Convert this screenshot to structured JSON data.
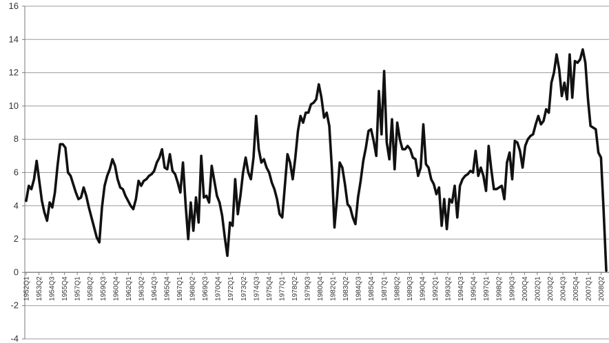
{
  "chart_data": {
    "type": "line",
    "title": "",
    "xlabel": "",
    "ylabel": "",
    "ylim": [
      -4,
      16
    ],
    "yticks": [
      -4,
      -2,
      0,
      2,
      4,
      6,
      8,
      10,
      12,
      14,
      16
    ],
    "grid": "horizontal",
    "legend": "none",
    "colors": {
      "line": "#111111",
      "grid": "#9a9a9a",
      "axis": "#7a7a7a"
    },
    "xtick_labels": [
      "1952Q1",
      "1953Q2",
      "1954Q3",
      "1955Q4",
      "1957Q1",
      "1958Q2",
      "1959Q3",
      "1960Q4",
      "1962Q1",
      "1963Q2",
      "1964Q3",
      "1965Q4",
      "1967Q1",
      "1968Q2",
      "1969Q3",
      "1970Q4",
      "1972Q1",
      "1973Q2",
      "1974Q3",
      "1975Q4",
      "1977Q1",
      "1978Q2",
      "1979Q3",
      "1980Q4",
      "1982Q1",
      "1983Q2",
      "1984Q3",
      "1985Q4",
      "1987Q1",
      "1988Q2",
      "1989Q3",
      "1990Q4",
      "1992Q1",
      "1993Q2",
      "1994Q3",
      "1995Q4",
      "1997Q1",
      "1998Q2",
      "1999Q3",
      "2000Q4",
      "2002Q1",
      "2003Q2",
      "2004Q3",
      "2005Q4",
      "2007Q1",
      "2008Q2"
    ],
    "x_start": "1952Q1",
    "x_end": "2008Q4",
    "series": [
      {
        "values": [
          4.3,
          5.2,
          5.0,
          5.6,
          6.7,
          5.5,
          4.3,
          3.6,
          3.1,
          4.2,
          3.9,
          4.8,
          6.4,
          7.7,
          7.7,
          7.5,
          6.0,
          5.8,
          5.3,
          4.8,
          4.4,
          4.5,
          5.1,
          4.6,
          3.9,
          3.3,
          2.7,
          2.1,
          1.8,
          3.9,
          5.2,
          5.8,
          6.2,
          6.8,
          6.4,
          5.6,
          5.1,
          5.0,
          4.6,
          4.3,
          4.0,
          3.8,
          4.4,
          5.5,
          5.2,
          5.5,
          5.6,
          5.8,
          5.9,
          6.1,
          6.6,
          6.9,
          7.4,
          6.3,
          6.2,
          7.1,
          6.1,
          5.9,
          5.4,
          4.8,
          6.6,
          4.1,
          2.0,
          4.2,
          2.5,
          4.5,
          3.0,
          7.0,
          4.5,
          4.6,
          4.2,
          6.4,
          5.5,
          4.6,
          4.2,
          3.4,
          2.1,
          1.0,
          3.0,
          2.8,
          5.6,
          3.5,
          4.6,
          6.0,
          6.9,
          6.0,
          5.6,
          6.9,
          9.4,
          7.4,
          6.6,
          6.8,
          6.3,
          6.0,
          5.4,
          5.0,
          4.4,
          3.5,
          3.3,
          5.2,
          7.1,
          6.6,
          5.6,
          6.9,
          8.5,
          9.4,
          9.0,
          9.6,
          9.6,
          10.1,
          10.2,
          10.4,
          11.3,
          10.5,
          9.3,
          9.6,
          8.8,
          6.2,
          2.7,
          4.5,
          6.6,
          6.3,
          5.3,
          4.1,
          3.9,
          3.3,
          2.9,
          4.5,
          5.5,
          6.7,
          7.5,
          8.5,
          8.6,
          7.9,
          7.0,
          10.9,
          8.3,
          12.1,
          7.8,
          6.8,
          9.2,
          6.2,
          9.0,
          8.0,
          7.4,
          7.4,
          7.6,
          7.4,
          6.9,
          6.8,
          5.8,
          6.3,
          8.9,
          6.5,
          6.3,
          5.6,
          5.3,
          4.7,
          5.1,
          2.8,
          4.4,
          2.6,
          4.4,
          4.2,
          5.2,
          3.3,
          5.2,
          5.6,
          5.8,
          5.9,
          6.1,
          6.0,
          7.3,
          5.8,
          6.3,
          5.8,
          4.9,
          7.6,
          6.2,
          5.0,
          5.0,
          5.1,
          5.2,
          4.4,
          6.6,
          7.2,
          5.6,
          7.9,
          7.8,
          7.3,
          6.3,
          7.6,
          8.0,
          8.2,
          8.3,
          8.9,
          9.4,
          8.9,
          9.1,
          9.8,
          9.6,
          11.4,
          12.0,
          13.1,
          12.2,
          10.6,
          11.4,
          10.4,
          13.1,
          10.5,
          12.7,
          12.6,
          12.8,
          13.4,
          12.6,
          10.4,
          8.8,
          8.7,
          8.6,
          7.2,
          6.9,
          3.7,
          0.1
        ]
      }
    ]
  }
}
